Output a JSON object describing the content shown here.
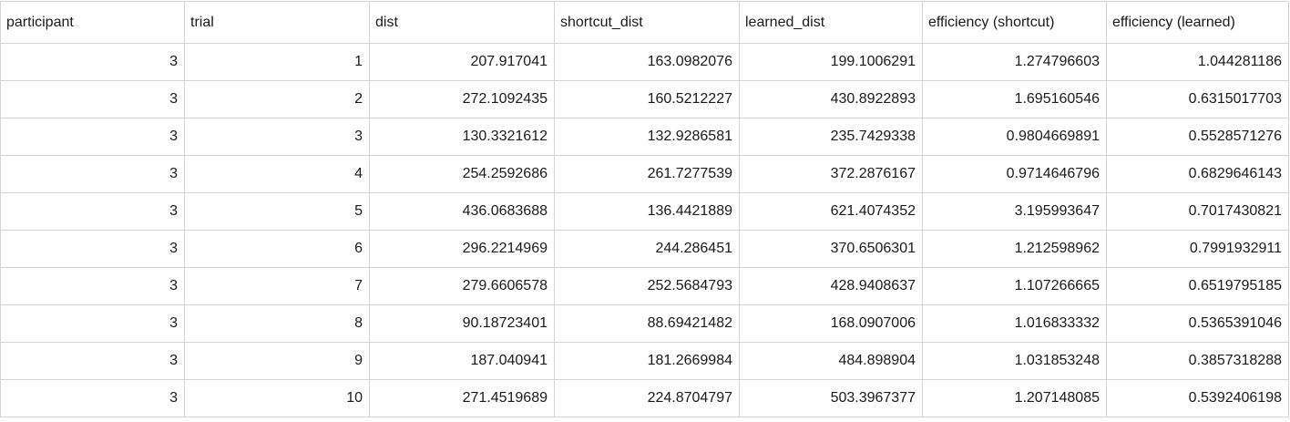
{
  "columns": [
    "participant",
    "trial",
    "dist",
    "shortcut_dist",
    "learned_dist",
    "efficiency (shortcut)",
    "efficiency (learned)"
  ],
  "rows": [
    [
      "3",
      "1",
      "207.917041",
      "163.0982076",
      "199.1006291",
      "1.274796603",
      "1.044281186"
    ],
    [
      "3",
      "2",
      "272.1092435",
      "160.5212227",
      "430.8922893",
      "1.695160546",
      "0.6315017703"
    ],
    [
      "3",
      "3",
      "130.3321612",
      "132.9286581",
      "235.7429338",
      "0.9804669891",
      "0.5528571276"
    ],
    [
      "3",
      "4",
      "254.2592686",
      "261.7277539",
      "372.2876167",
      "0.9714646796",
      "0.6829646143"
    ],
    [
      "3",
      "5",
      "436.0683688",
      "136.4421889",
      "621.4074352",
      "3.195993647",
      "0.7017430821"
    ],
    [
      "3",
      "6",
      "296.2214969",
      "244.286451",
      "370.6506301",
      "1.212598962",
      "0.7991932911"
    ],
    [
      "3",
      "7",
      "279.6606578",
      "252.5684793",
      "428.9408637",
      "1.107266665",
      "0.6519795185"
    ],
    [
      "3",
      "8",
      "90.18723401",
      "88.69421482",
      "168.0907006",
      "1.016833332",
      "0.5365391046"
    ],
    [
      "3",
      "9",
      "187.040941",
      "181.2669984",
      "484.898904",
      "1.031853248",
      "0.3857318288"
    ],
    [
      "3",
      "10",
      "271.4519689",
      "224.8704797",
      "503.3967377",
      "1.207148085",
      "0.5392406198"
    ]
  ]
}
